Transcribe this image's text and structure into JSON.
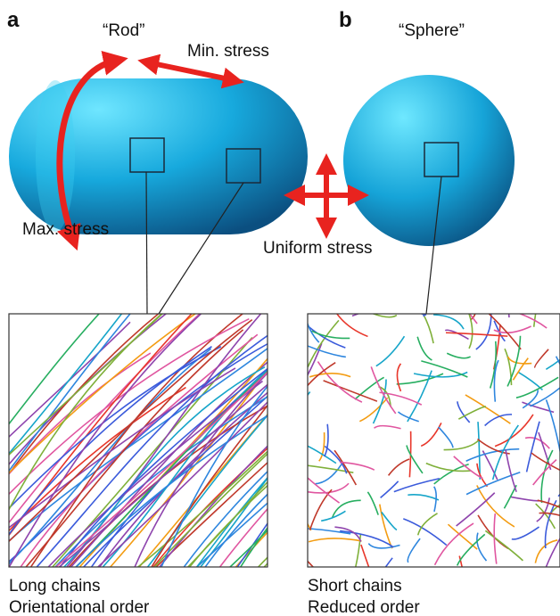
{
  "panels": [
    {
      "label": "a",
      "title": "“Rod”",
      "stress_labels": [
        "Min. stress",
        "Max. stress"
      ],
      "caption": [
        "Long chains",
        "Orientational order"
      ]
    },
    {
      "label": "b",
      "title": "“Sphere”",
      "stress_labels": [
        "Uniform stress"
      ],
      "caption": [
        "Short chains",
        "Reduced order"
      ]
    }
  ]
}
